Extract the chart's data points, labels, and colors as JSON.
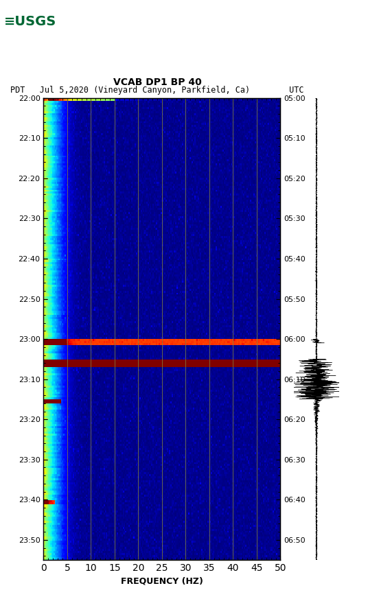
{
  "title_line1": "VCAB DP1 BP 40",
  "title_line2": "PDT   Jul 5,2020 (Vineyard Canyon, Parkfield, Ca)        UTC",
  "xlabel": "FREQUENCY (HZ)",
  "freq_ticks": [
    0,
    5,
    10,
    15,
    20,
    25,
    30,
    35,
    40,
    45,
    50
  ],
  "left_time_labels": [
    "22:00",
    "22:10",
    "22:20",
    "22:30",
    "22:40",
    "22:50",
    "23:00",
    "23:10",
    "23:20",
    "23:30",
    "23:40",
    "23:50"
  ],
  "right_time_labels": [
    "05:00",
    "05:10",
    "05:20",
    "05:30",
    "05:40",
    "05:50",
    "06:00",
    "06:10",
    "06:20",
    "06:30",
    "06:40",
    "06:50"
  ],
  "colormap": "jet",
  "background_color": "#ffffff",
  "grid_color": "#808040",
  "fig_width": 5.52,
  "fig_height": 8.92,
  "dpi": 100
}
